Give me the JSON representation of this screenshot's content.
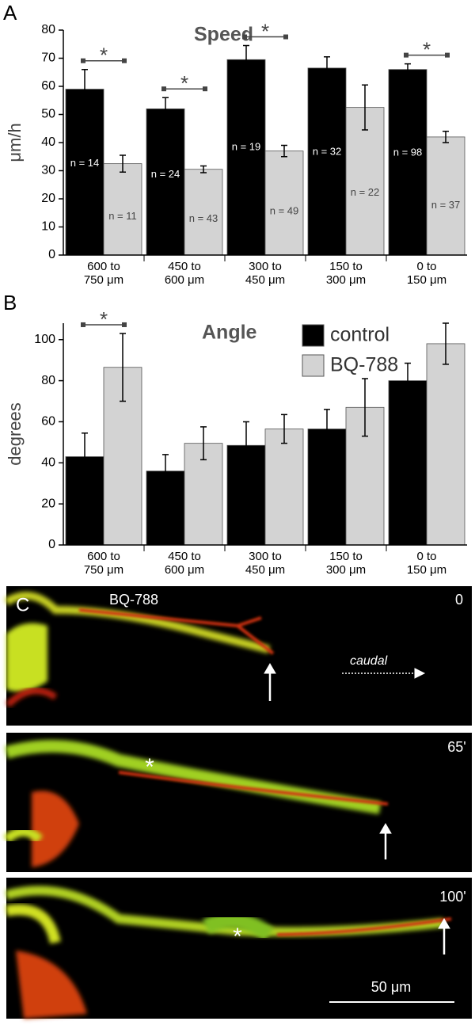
{
  "chart_data": [
    {
      "type": "bar",
      "panel_label": "A",
      "title": "Speed",
      "y_label": "μm/h",
      "categories": [
        [
          "600 to",
          "750 μm"
        ],
        [
          "450 to",
          "600 μm"
        ],
        [
          "300 to",
          "450 μm"
        ],
        [
          "150 to",
          "300 μm"
        ],
        [
          "0 to",
          "150 μm"
        ]
      ],
      "series": [
        {
          "color": "#000000",
          "values": [
            59,
            52,
            69.5,
            66.5,
            66
          ],
          "errors": [
            7,
            4,
            5,
            4,
            2
          ],
          "n_labels": [
            "n = 14",
            "n = 24",
            "n = 19",
            "n = 32",
            "n = 98"
          ]
        },
        {
          "color": "#d3d3d3",
          "values": [
            32.5,
            30.5,
            37,
            52.5,
            42
          ],
          "errors": [
            3,
            1.2,
            2,
            8,
            2
          ],
          "n_labels": [
            "n = 11",
            "n = 43",
            "n = 49",
            "n = 22",
            "n = 37"
          ]
        }
      ],
      "significance": [
        {
          "category": 0,
          "label": "*"
        },
        {
          "category": 1,
          "label": "*"
        },
        {
          "category": 2,
          "label": "*"
        },
        {
          "category": 4,
          "label": "*"
        }
      ],
      "ylim": [
        0,
        80
      ],
      "yticks": [
        0,
        10,
        20,
        30,
        40,
        50,
        60,
        70,
        80
      ]
    },
    {
      "type": "bar",
      "panel_label": "B",
      "title": "Angle",
      "y_label": "degrees",
      "categories": [
        [
          "600 to",
          "750 μm"
        ],
        [
          "450 to",
          "600 μm"
        ],
        [
          "300 to",
          "450 μm"
        ],
        [
          "150 to",
          "300 μm"
        ],
        [
          "0 to",
          "150 μm"
        ]
      ],
      "series": [
        {
          "name": "control",
          "color": "#000000",
          "values": [
            43,
            36,
            48.5,
            56.5,
            80
          ],
          "errors": [
            11.5,
            8,
            11.5,
            9.5,
            8.5
          ]
        },
        {
          "name": "BQ-788",
          "color": "#d3d3d3",
          "values": [
            86.5,
            49.5,
            56.5,
            67,
            98
          ],
          "errors": [
            16.5,
            8,
            7,
            14,
            10
          ]
        }
      ],
      "significance": [
        {
          "category": 0,
          "label": "*"
        }
      ],
      "legend": "top-right",
      "ylim": [
        0,
        108
      ],
      "yticks": [
        0,
        20,
        40,
        60,
        80,
        100
      ]
    }
  ],
  "panel_c": {
    "label": "C",
    "treatment": "BQ-788",
    "direction": "caudal",
    "times": [
      "0",
      "65'",
      "100'"
    ],
    "cell_body_marker": "*",
    "scale_bar": "50 μm"
  }
}
